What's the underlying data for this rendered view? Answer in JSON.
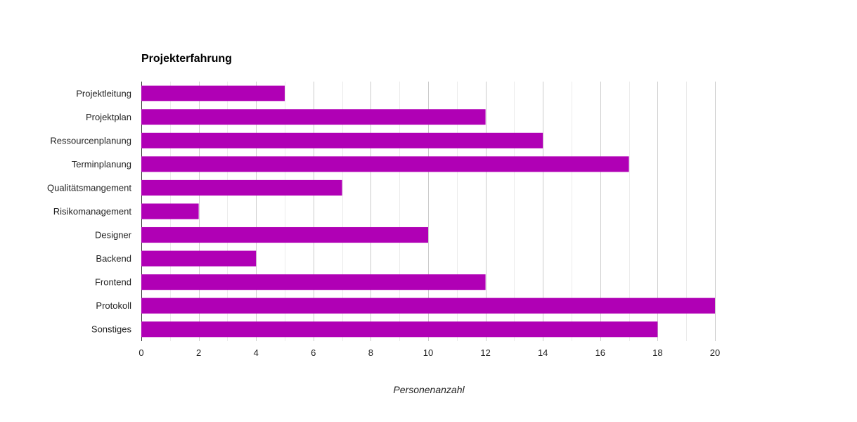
{
  "chart_data": {
    "type": "bar",
    "orientation": "horizontal",
    "title": "Projekterfahrung",
    "xlabel": "Personenanzahl",
    "ylabel": "",
    "categories": [
      "Projektleitung",
      "Projektplan",
      "Ressourcenplanung",
      "Terminplanung",
      "Qualitätsmangement",
      "Risikomanagement",
      "Designer",
      "Backend",
      "Frontend",
      "Protokoll",
      "Sonstiges"
    ],
    "values": [
      5,
      12,
      14,
      17,
      7,
      2,
      10,
      4,
      12,
      20,
      18
    ],
    "xlim": [
      0,
      20
    ],
    "xticks": [
      "0",
      "2",
      "4",
      "6",
      "8",
      "10",
      "12",
      "14",
      "16",
      "18",
      "20"
    ],
    "grid": true,
    "legend": "none",
    "bar_color": "#b000b5"
  }
}
